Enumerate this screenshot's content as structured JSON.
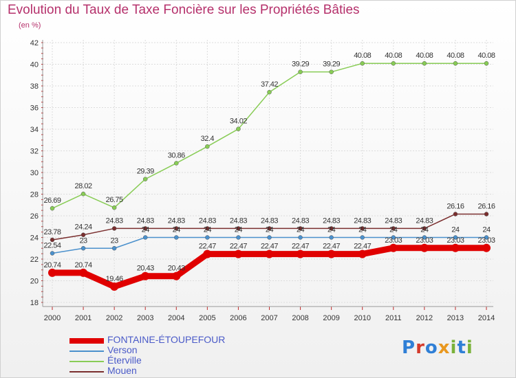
{
  "title": "Evolution du Taux de Taxe Foncière sur les Propriétés Bâties",
  "unit_label": "(en %)",
  "logo_text": "Proxiti",
  "chart_data": {
    "type": "line",
    "title": "Evolution du Taux de Taxe Foncière sur les Propriétés Bâties",
    "ylabel": "(en %)",
    "xlabel": "",
    "x": [
      2000,
      2001,
      2002,
      2003,
      2004,
      2005,
      2006,
      2007,
      2008,
      2009,
      2010,
      2011,
      2012,
      2013,
      2014
    ],
    "ylim": [
      18,
      42
    ],
    "yticks": [
      18,
      20,
      22,
      24,
      26,
      28,
      30,
      32,
      34,
      36,
      38,
      40,
      42
    ],
    "grid": true,
    "legend_position": "bottom-left",
    "series": [
      {
        "name": "FONTAINE-ÉTOUPEFOUR",
        "color": "#e00000",
        "emphasis": true,
        "values": [
          20.74,
          20.74,
          19.46,
          20.43,
          20.43,
          22.47,
          22.47,
          22.47,
          22.47,
          22.47,
          22.47,
          23.03,
          23.03,
          23.03,
          23.03
        ],
        "labels": [
          "20.74",
          "20.74",
          "19.46",
          "20.43",
          "20.43",
          "22.47",
          "22.47",
          "22.47",
          "22.47",
          "22.47",
          "22.47",
          "23.03",
          "23.03",
          "23.03",
          "23.03"
        ]
      },
      {
        "name": "Verson",
        "color": "#4a90cc",
        "emphasis": false,
        "values": [
          22.54,
          23,
          23,
          24,
          24,
          24,
          24,
          24,
          24,
          24,
          24,
          24,
          24,
          24,
          24
        ],
        "labels": [
          "22.54",
          "23",
          "23",
          "24",
          "24",
          "24",
          "24",
          "24",
          "24",
          "24",
          "24",
          "24",
          "24",
          "24",
          "24"
        ]
      },
      {
        "name": "Éterville",
        "color": "#88cc55",
        "emphasis": false,
        "values": [
          26.69,
          28.02,
          26.75,
          29.39,
          30.86,
          32.4,
          34.02,
          37.42,
          39.29,
          39.29,
          40.08,
          40.08,
          40.08,
          40.08,
          40.08
        ],
        "labels": [
          "26.69",
          "28.02",
          "26.75",
          "29.39",
          "30.86",
          "32.4",
          "34.02",
          "37.42",
          "39.29",
          "39.29",
          "40.08",
          "40.08",
          "40.08",
          "40.08",
          "40.08"
        ]
      },
      {
        "name": "Mouen",
        "color": "#7a2e2e",
        "emphasis": false,
        "values": [
          23.78,
          24.24,
          24.83,
          24.83,
          24.83,
          24.83,
          24.83,
          24.83,
          24.83,
          24.83,
          24.83,
          24.83,
          24.83,
          26.16,
          26.16
        ],
        "labels": [
          "23.78",
          "24.24",
          "24.83",
          "24.83",
          "24.83",
          "24.83",
          "24.83",
          "24.83",
          "24.83",
          "24.83",
          "24.83",
          "24.83",
          "24.83",
          "26.16",
          "26.16"
        ]
      }
    ]
  }
}
